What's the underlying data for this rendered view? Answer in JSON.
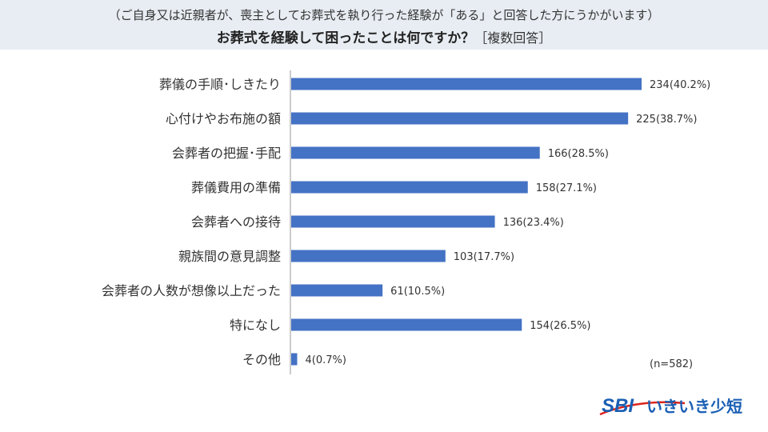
{
  "header": {
    "subtitle": "（ご自身又は近親者が、喪主としてお葬式を執り行った経験が「ある」と回答した方にうかがいます）",
    "title": "お葬式を経験して困ったことは何ですか？",
    "title_tag": "［複数回答］"
  },
  "sample_size": "(n=582)",
  "logo": {
    "mark": "SBI",
    "name": "いきいき少短"
  },
  "colors": {
    "bar": "#4472c4",
    "header_bg": "#e8edf3",
    "logo_blue": "#1a5fb4",
    "logo_red": "#d9241c"
  },
  "chart_data": {
    "type": "bar",
    "orientation": "horizontal",
    "categories": [
      "葬儀の手順･しきたり",
      "心付けやお布施の額",
      "会葬者の把握･手配",
      "葬儀費用の準備",
      "会葬者への接待",
      "親族間の意見調整",
      "会葬者の人数が想像以上だった",
      "特になし",
      "その他"
    ],
    "values": [
      234,
      225,
      166,
      158,
      136,
      103,
      61,
      154,
      4
    ],
    "labels": [
      "234(40.2%)",
      "225(38.7%)",
      "166(28.5%)",
      "158(27.1%)",
      "136(23.4%)",
      "103(17.7%)",
      "61(10.5%)",
      "154(26.5%)",
      "4(0.7%)"
    ],
    "title": "お葬式を経験して困ったことは何ですか？",
    "xlabel": "",
    "ylabel": "",
    "grid": false,
    "legend": "none"
  }
}
